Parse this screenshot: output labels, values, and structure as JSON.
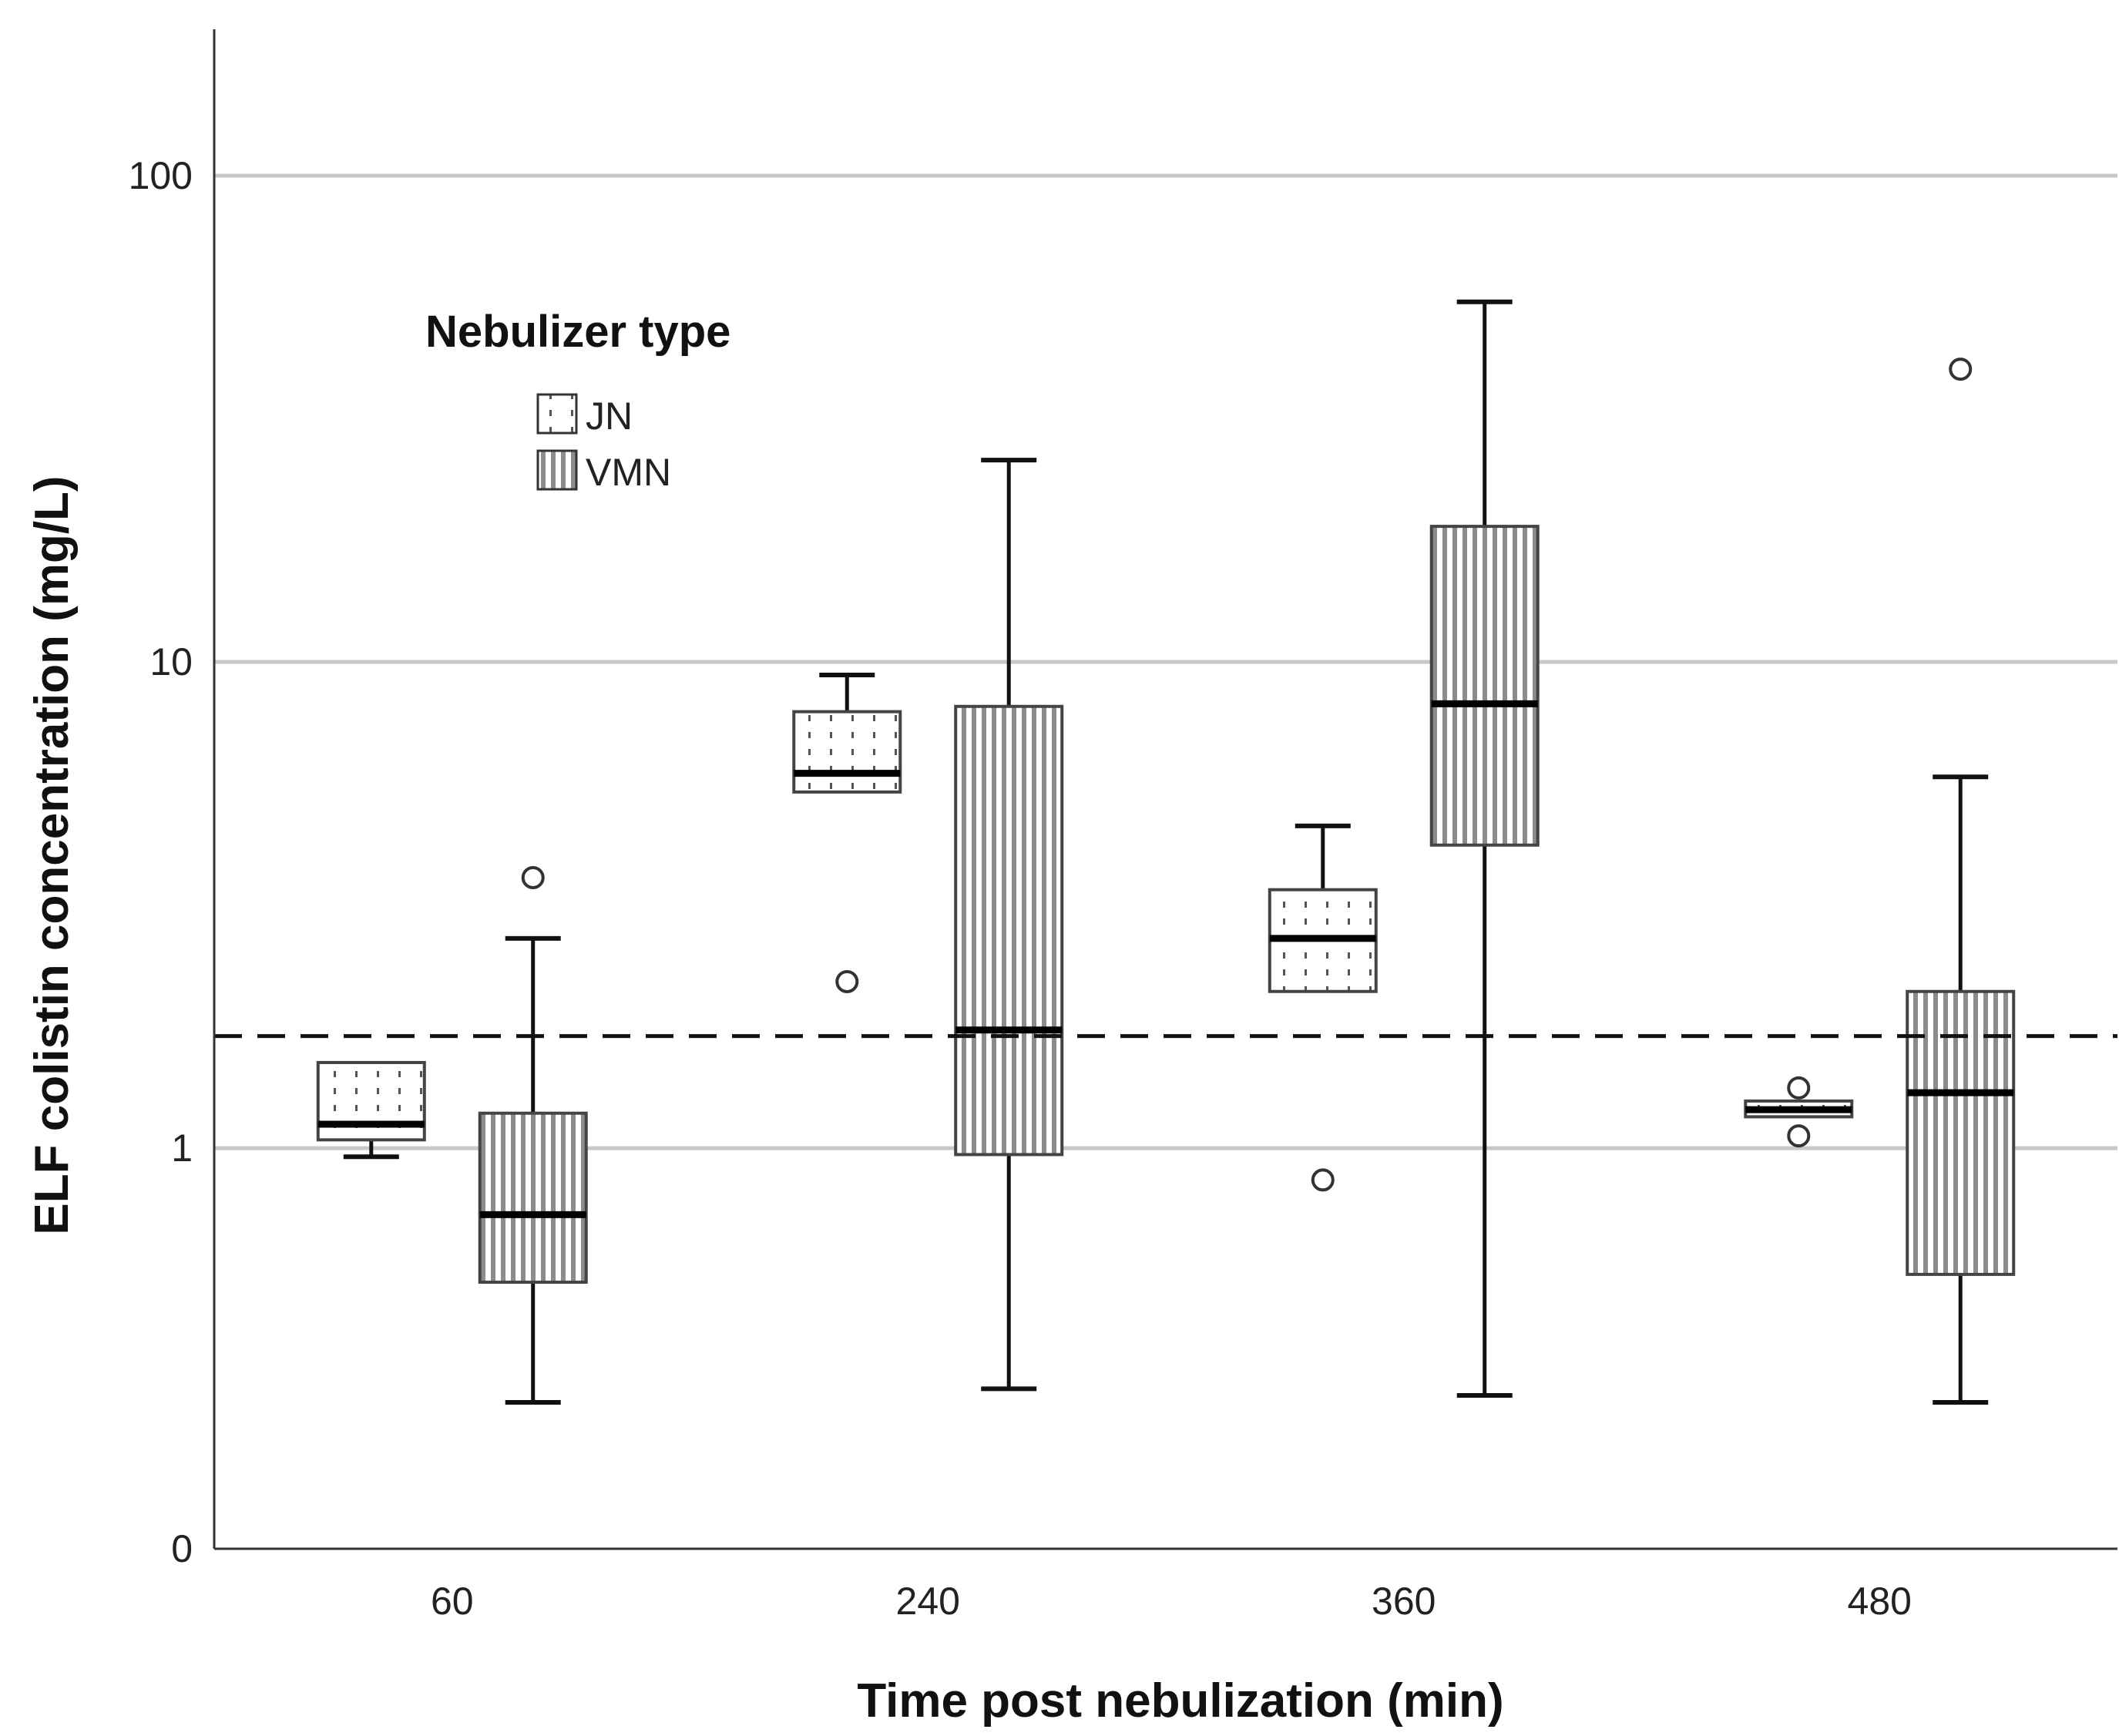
{
  "chart_data": {
    "type": "boxplot",
    "title": "",
    "xlabel": "Time post nebulization (min)",
    "ylabel": "ELF colistin concentration (mg/L)",
    "y_scale": "log",
    "yticks": [
      {
        "value": 0.15,
        "label": "0"
      },
      {
        "value": 1,
        "label": "1"
      },
      {
        "value": 10,
        "label": "10"
      },
      {
        "value": 100,
        "label": "100"
      }
    ],
    "ylim": [
      0.15,
      200
    ],
    "categories": [
      "60",
      "240",
      "360",
      "480"
    ],
    "reference_line": {
      "value": 1.7,
      "style": "dashed"
    },
    "legend": {
      "title": "Nebulizer type",
      "position": "top-left",
      "entries": [
        "JN",
        "VMN"
      ]
    },
    "series": [
      {
        "name": "JN",
        "pattern": "dotted",
        "boxes": [
          {
            "category": "60",
            "whisker_low": 0.96,
            "q1": 1.04,
            "median": 1.12,
            "q3": 1.5,
            "whisker_high": 1.5,
            "outliers": []
          },
          {
            "category": "240",
            "whisker_low": 5.4,
            "q1": 5.4,
            "median": 5.9,
            "q3": 7.9,
            "whisker_high": 9.4,
            "outliers": [
              2.2
            ]
          },
          {
            "category": "360",
            "whisker_low": 2.1,
            "q1": 2.1,
            "median": 2.7,
            "q3": 3.4,
            "whisker_high": 4.6,
            "outliers": [
              0.86
            ]
          },
          {
            "category": "480",
            "whisker_low": 1.16,
            "q1": 1.16,
            "median": 1.2,
            "q3": 1.25,
            "whisker_high": 1.25,
            "outliers": [
              1.33,
              1.06
            ]
          }
        ]
      },
      {
        "name": "VMN",
        "pattern": "vertical-stripes",
        "boxes": [
          {
            "category": "60",
            "whisker_low": 0.3,
            "q1": 0.53,
            "median": 0.73,
            "q3": 1.18,
            "whisker_high": 2.7,
            "outliers": [
              3.6
            ]
          },
          {
            "category": "240",
            "whisker_low": 0.32,
            "q1": 0.97,
            "median": 1.75,
            "q3": 8.1,
            "whisker_high": 26,
            "outliers": []
          },
          {
            "category": "360",
            "whisker_low": 0.31,
            "q1": 4.2,
            "median": 8.2,
            "q3": 19,
            "whisker_high": 55,
            "outliers": []
          },
          {
            "category": "480",
            "whisker_low": 0.3,
            "q1": 0.55,
            "median": 1.3,
            "q3": 2.1,
            "whisker_high": 5.8,
            "outliers": [
              40
            ]
          }
        ]
      }
    ]
  }
}
